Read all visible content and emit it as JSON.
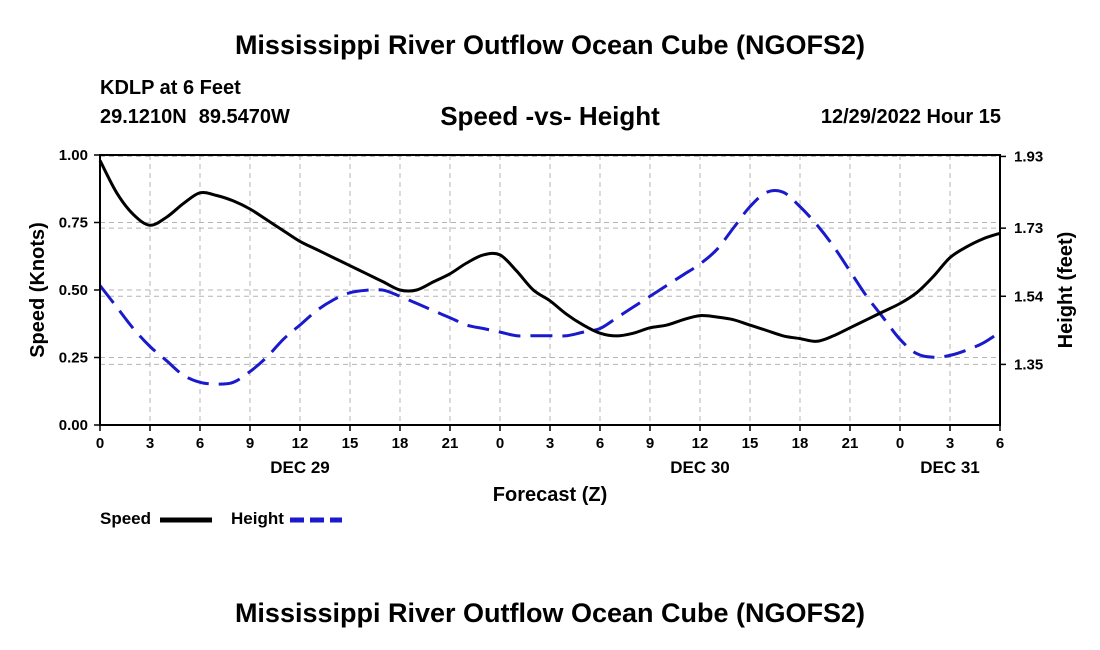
{
  "header": {
    "title": "Mississippi River Outflow Ocean Cube (NGOFS2)",
    "station": "KDLP at 6 Feet",
    "lat": "29.1210N",
    "lon": "89.5470W",
    "subtitle": "Speed -vs- Height",
    "timestamp": "12/29/2022 Hour 15"
  },
  "footer": {
    "title": "Mississippi River Outflow Ocean Cube (NGOFS2)"
  },
  "legend": {
    "speed_label": "Speed",
    "height_label": "Height"
  },
  "colors": {
    "speed": "#000000",
    "height": "#1a1acc",
    "grid": "#b4b4b4"
  },
  "chart_data": {
    "type": "line",
    "title": "Speed -vs- Height",
    "xlabel": "Forecast (Z)",
    "ylabel": "Speed (Knots)",
    "y2label": "Height (feet)",
    "x_unit": "hours since 12/29/2022 00Z",
    "xlim": [
      0,
      54
    ],
    "ylim": [
      0,
      1
    ],
    "y2lim": [
      1.181,
      1.934
    ],
    "x_ticks": [
      0,
      3,
      6,
      9,
      12,
      15,
      18,
      21,
      24,
      27,
      30,
      33,
      36,
      39,
      42,
      45,
      48,
      51,
      54
    ],
    "x_tick_labels": [
      "0",
      "3",
      "6",
      "9",
      "12",
      "15",
      "18",
      "21",
      "0",
      "3",
      "6",
      "9",
      "12",
      "15",
      "18",
      "21",
      "0",
      "3",
      "6"
    ],
    "day_labels": [
      {
        "x": 12,
        "label": "DEC 29"
      },
      {
        "x": 36,
        "label": "DEC 30"
      },
      {
        "x": 51,
        "label": "DEC 31"
      }
    ],
    "y_ticks": [
      0,
      0.25,
      0.5,
      0.75,
      1.0
    ],
    "y_tick_labels": [
      "0.00",
      "0.25",
      "0.50",
      "0.75",
      "1.00"
    ],
    "y2_ticks": [
      1.35,
      1.54,
      1.73,
      1.93
    ],
    "y2_tick_labels": [
      "1.35",
      "1.54",
      "1.73",
      "1.93"
    ],
    "grid": true,
    "series": [
      {
        "name": "Speed",
        "axis": "left",
        "style": "solid",
        "x": [
          0,
          1,
          2,
          3,
          4,
          5,
          6,
          7,
          8,
          9,
          10,
          11,
          12,
          13,
          14,
          15,
          16,
          17,
          18,
          19,
          20,
          21,
          22,
          23,
          24,
          25,
          26,
          27,
          28,
          29,
          30,
          31,
          32,
          33,
          34,
          35,
          36,
          37,
          38,
          39,
          40,
          41,
          42,
          43,
          44,
          45,
          46,
          47,
          48,
          49,
          50,
          51,
          52,
          53,
          54
        ],
        "values": [
          0.98,
          0.86,
          0.78,
          0.74,
          0.77,
          0.82,
          0.86,
          0.85,
          0.83,
          0.8,
          0.76,
          0.72,
          0.68,
          0.65,
          0.62,
          0.59,
          0.56,
          0.53,
          0.5,
          0.5,
          0.53,
          0.56,
          0.6,
          0.63,
          0.63,
          0.57,
          0.5,
          0.46,
          0.41,
          0.37,
          0.34,
          0.33,
          0.34,
          0.36,
          0.37,
          0.39,
          0.405,
          0.4,
          0.39,
          0.37,
          0.35,
          0.33,
          0.32,
          0.31,
          0.33,
          0.36,
          0.39,
          0.42,
          0.45,
          0.49,
          0.55,
          0.62,
          0.66,
          0.69,
          0.71
        ]
      },
      {
        "name": "Height",
        "axis": "right",
        "style": "dashed",
        "x": [
          0,
          1,
          2,
          3,
          4,
          5,
          6,
          7,
          8,
          9,
          10,
          11,
          12,
          13,
          14,
          15,
          16,
          17,
          18,
          19,
          20,
          21,
          22,
          23,
          24,
          25,
          26,
          27,
          28,
          29,
          30,
          31,
          32,
          33,
          34,
          35,
          36,
          37,
          38,
          39,
          40,
          41,
          42,
          43,
          44,
          45,
          46,
          47,
          48,
          49,
          50,
          51,
          52,
          53,
          54
        ],
        "values": [
          1.57,
          1.51,
          1.45,
          1.4,
          1.36,
          1.32,
          1.3,
          1.295,
          1.3,
          1.33,
          1.37,
          1.42,
          1.46,
          1.5,
          1.53,
          1.55,
          1.557,
          1.557,
          1.54,
          1.52,
          1.5,
          1.48,
          1.46,
          1.45,
          1.44,
          1.43,
          1.43,
          1.43,
          1.43,
          1.44,
          1.45,
          1.48,
          1.51,
          1.54,
          1.57,
          1.6,
          1.63,
          1.67,
          1.73,
          1.79,
          1.83,
          1.83,
          1.79,
          1.74,
          1.68,
          1.61,
          1.54,
          1.48,
          1.42,
          1.38,
          1.37,
          1.375,
          1.39,
          1.41,
          1.44
        ]
      }
    ]
  }
}
